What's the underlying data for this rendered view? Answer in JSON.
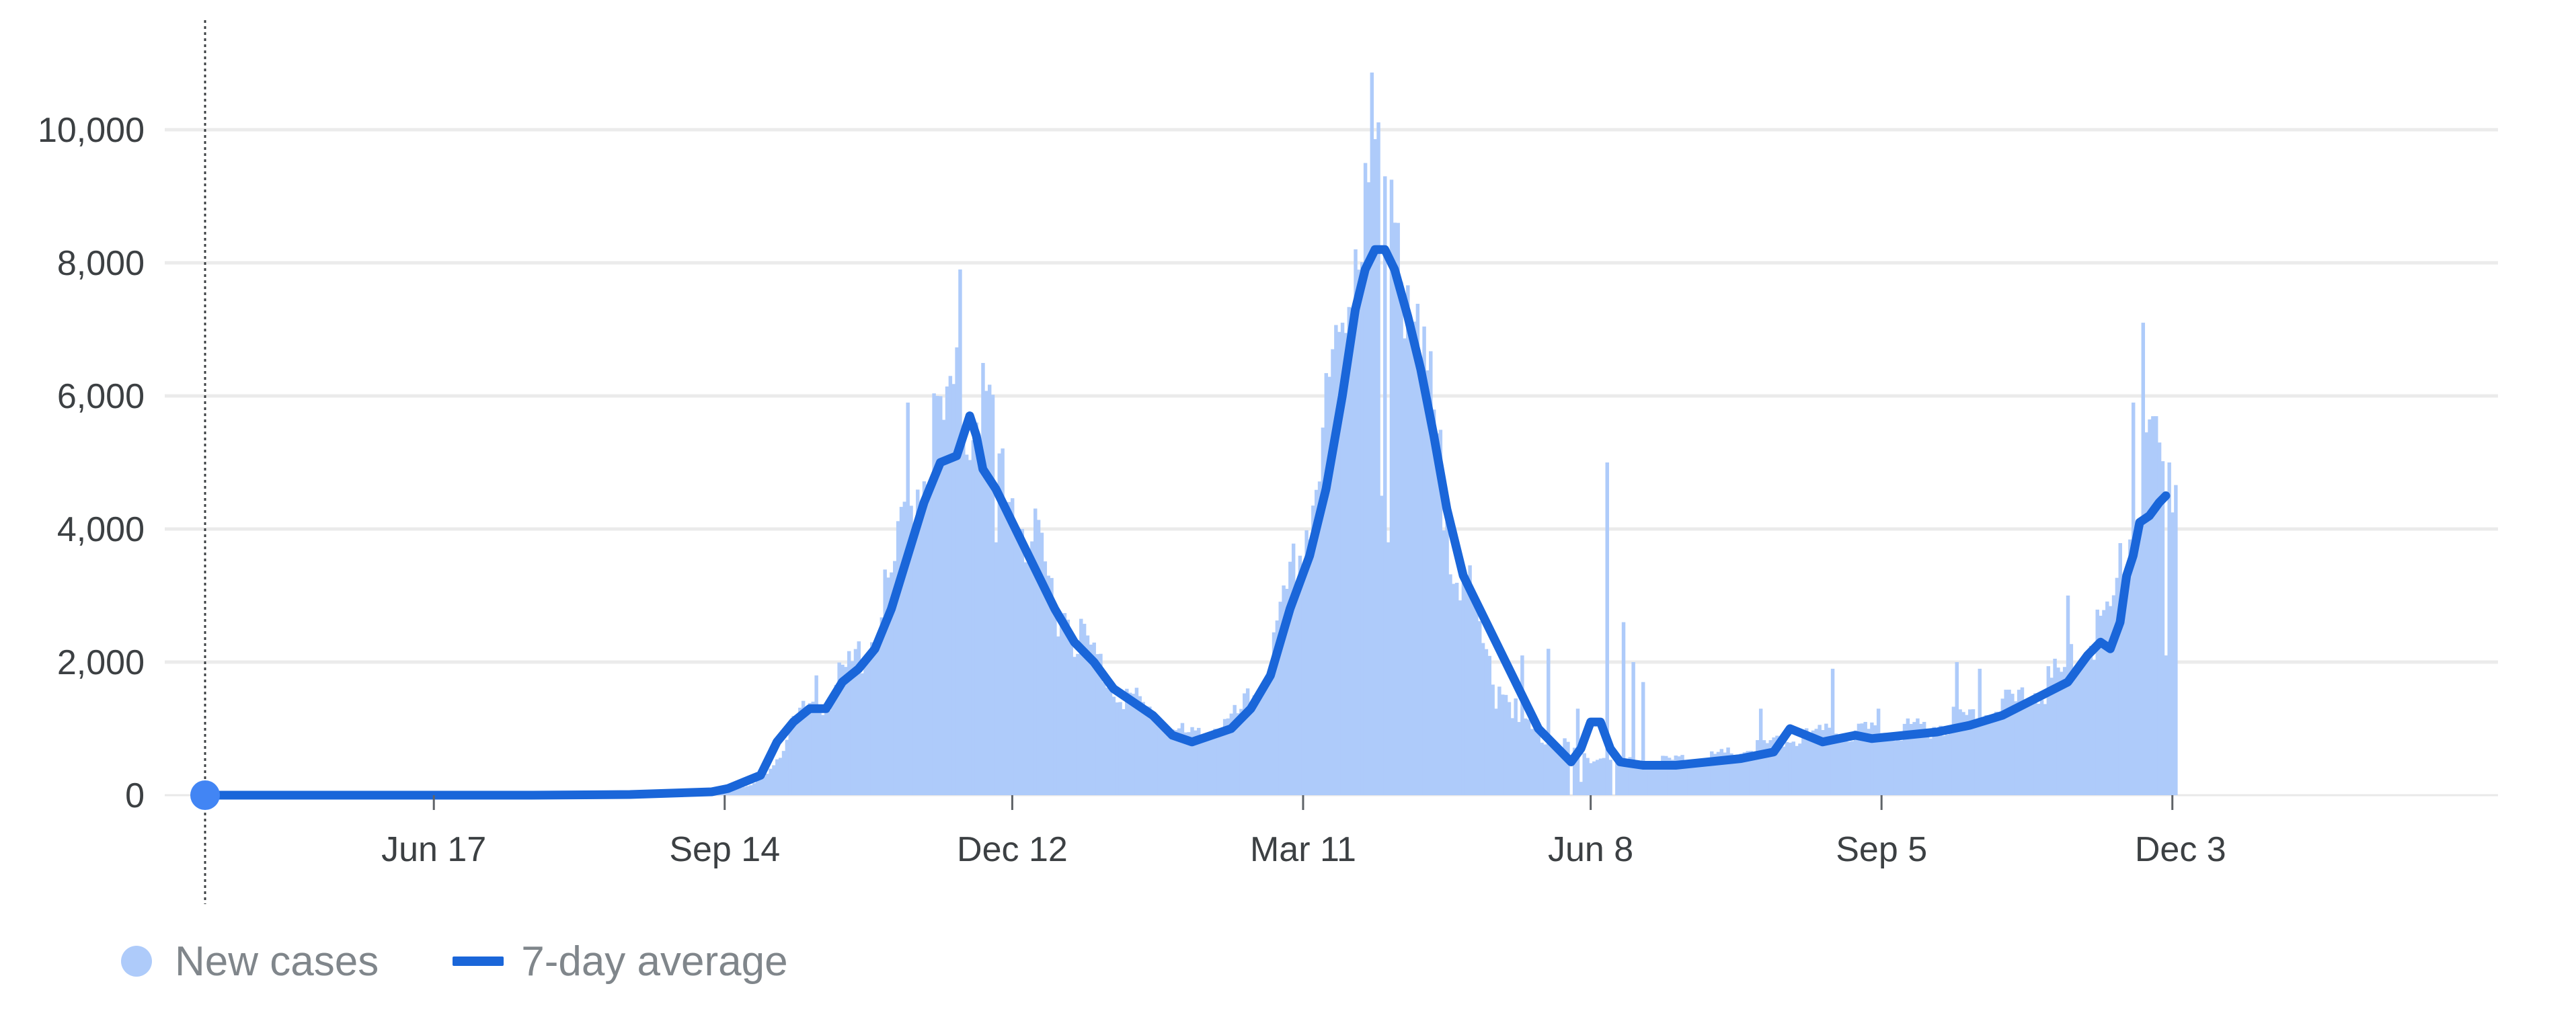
{
  "chart_data": {
    "type": "bar",
    "ylim": [
      0,
      11000
    ],
    "y_ticks": [
      0,
      2000,
      4000,
      6000,
      8000,
      10000
    ],
    "y_tick_labels": [
      "0",
      "2,000",
      "4,000",
      "6,000",
      "8,000",
      "10,000"
    ],
    "x_ticks": [
      70,
      159,
      247,
      336,
      424,
      513,
      602
    ],
    "x_tick_labels": [
      "Jun 17",
      "Sep 14",
      "Dec 12",
      "Mar 11",
      "Jun 8",
      "Sep 5",
      "Dec 3"
    ],
    "x_unit": "days",
    "xlim": [
      -16,
      603
    ],
    "grid": true,
    "legend": [
      {
        "label": "New cases",
        "color": "#aecbfa",
        "marker": "dot"
      },
      {
        "label": "7-day average",
        "color": "#1a66d9",
        "marker": "line"
      }
    ],
    "series": [
      {
        "name": "New cases",
        "type": "bar",
        "color": "#aecbfa",
        "points": [
          [
            0,
            0
          ],
          [
            50,
            0
          ],
          [
            100,
            0
          ],
          [
            150,
            0
          ],
          [
            160,
            60
          ],
          [
            167,
            150
          ],
          [
            172,
            300
          ],
          [
            176,
            600
          ],
          [
            181,
            1000
          ],
          [
            186,
            1300
          ],
          [
            190,
            1300
          ],
          [
            195,
            1600
          ],
          [
            200,
            1900
          ],
          [
            205,
            2200
          ],
          [
            210,
            2900
          ],
          [
            215,
            3800
          ],
          [
            220,
            4600
          ],
          [
            225,
            5000
          ],
          [
            230,
            5300
          ],
          [
            234,
            5200
          ],
          [
            238,
            5300
          ],
          [
            242,
            4700
          ],
          [
            246,
            4200
          ],
          [
            250,
            3800
          ],
          [
            255,
            3200
          ],
          [
            260,
            2700
          ],
          [
            266,
            2300
          ],
          [
            272,
            1900
          ],
          [
            278,
            1500
          ],
          [
            284,
            1300
          ],
          [
            290,
            1100
          ],
          [
            296,
            900
          ],
          [
            302,
            800
          ],
          [
            308,
            900
          ],
          [
            314,
            1000
          ],
          [
            320,
            1300
          ],
          [
            326,
            1800
          ],
          [
            332,
            2800
          ],
          [
            338,
            3800
          ],
          [
            343,
            5000
          ],
          [
            348,
            6400
          ],
          [
            353,
            8100
          ],
          [
            357,
            8700
          ],
          [
            361,
            8500
          ],
          [
            365,
            8000
          ],
          [
            369,
            6800
          ],
          [
            374,
            5500
          ],
          [
            379,
            4000
          ],
          [
            385,
            3000
          ],
          [
            391,
            2000
          ],
          [
            397,
            1500
          ],
          [
            403,
            1000
          ],
          [
            409,
            800
          ],
          [
            415,
            700
          ],
          [
            420,
            550
          ],
          [
            430,
            500
          ],
          [
            440,
            450
          ],
          [
            450,
            480
          ],
          [
            460,
            500
          ],
          [
            470,
            600
          ],
          [
            480,
            700
          ],
          [
            490,
            800
          ],
          [
            500,
            850
          ],
          [
            510,
            850
          ],
          [
            520,
            900
          ],
          [
            530,
            950
          ],
          [
            540,
            1100
          ],
          [
            550,
            1200
          ],
          [
            560,
            1400
          ],
          [
            570,
            1700
          ],
          [
            576,
            2100
          ],
          [
            580,
            2300
          ],
          [
            584,
            2600
          ],
          [
            588,
            3300
          ],
          [
            592,
            4100
          ],
          [
            596,
            4500
          ],
          [
            600,
            4300
          ]
        ],
        "spikes": [
          [
            187,
            1800
          ],
          [
            215,
            5900
          ],
          [
            224,
            6000
          ],
          [
            228,
            6300
          ],
          [
            231,
            7900
          ],
          [
            236,
            5600
          ],
          [
            242,
            3800
          ],
          [
            251,
            3500
          ],
          [
            348,
            7100
          ],
          [
            355,
            9500
          ],
          [
            361,
            9300
          ],
          [
            365,
            8600
          ],
          [
            372,
            6400
          ],
          [
            386,
            3300
          ],
          [
            403,
            2100
          ],
          [
            411,
            2200
          ],
          [
            420,
            1300
          ],
          [
            429,
            5000
          ],
          [
            434,
            2600
          ],
          [
            437,
            2000
          ],
          [
            440,
            1700
          ],
          [
            476,
            1300
          ],
          [
            498,
            1900
          ],
          [
            512,
            1300
          ],
          [
            536,
            2000
          ],
          [
            543,
            1900
          ],
          [
            570,
            3000
          ],
          [
            590,
            5900
          ],
          [
            593,
            7100
          ],
          [
            598,
            5300
          ],
          [
            601,
            5000
          ]
        ],
        "dips": [
          [
            152,
            0
          ],
          [
            360,
            4500
          ],
          [
            362,
            3800
          ],
          [
            395,
            1300
          ],
          [
            402,
            1100
          ],
          [
            418,
            0
          ],
          [
            421,
            200
          ],
          [
            431,
            0
          ],
          [
            600,
            2100
          ]
        ]
      },
      {
        "name": "7-day average",
        "type": "line",
        "color": "#1a66d9",
        "points": [
          [
            0,
            0
          ],
          [
            50,
            0
          ],
          [
            70,
            0
          ],
          [
            100,
            0
          ],
          [
            130,
            10
          ],
          [
            155,
            50
          ],
          [
            160,
            100
          ],
          [
            165,
            200
          ],
          [
            170,
            300
          ],
          [
            175,
            800
          ],
          [
            180,
            1100
          ],
          [
            185,
            1300
          ],
          [
            190,
            1300
          ],
          [
            195,
            1700
          ],
          [
            200,
            1900
          ],
          [
            205,
            2200
          ],
          [
            210,
            2800
          ],
          [
            215,
            3600
          ],
          [
            220,
            4400
          ],
          [
            225,
            5000
          ],
          [
            230,
            5100
          ],
          [
            234,
            5700
          ],
          [
            236,
            5400
          ],
          [
            238,
            4900
          ],
          [
            242,
            4600
          ],
          [
            246,
            4200
          ],
          [
            250,
            3800
          ],
          [
            255,
            3300
          ],
          [
            260,
            2800
          ],
          [
            266,
            2300
          ],
          [
            272,
            2000
          ],
          [
            278,
            1600
          ],
          [
            284,
            1400
          ],
          [
            290,
            1200
          ],
          [
            296,
            900
          ],
          [
            302,
            800
          ],
          [
            308,
            900
          ],
          [
            314,
            1000
          ],
          [
            320,
            1300
          ],
          [
            326,
            1800
          ],
          [
            332,
            2800
          ],
          [
            338,
            3600
          ],
          [
            343,
            4600
          ],
          [
            348,
            6000
          ],
          [
            352,
            7300
          ],
          [
            355,
            7900
          ],
          [
            358,
            8200
          ],
          [
            361,
            8200
          ],
          [
            364,
            7900
          ],
          [
            368,
            7200
          ],
          [
            372,
            6400
          ],
          [
            376,
            5400
          ],
          [
            380,
            4300
          ],
          [
            385,
            3300
          ],
          [
            390,
            2800
          ],
          [
            396,
            2200
          ],
          [
            402,
            1600
          ],
          [
            408,
            1000
          ],
          [
            414,
            700
          ],
          [
            418,
            500
          ],
          [
            421,
            700
          ],
          [
            424,
            1100
          ],
          [
            427,
            1100
          ],
          [
            430,
            700
          ],
          [
            433,
            500
          ],
          [
            440,
            450
          ],
          [
            450,
            450
          ],
          [
            460,
            500
          ],
          [
            470,
            550
          ],
          [
            480,
            650
          ],
          [
            485,
            1000
          ],
          [
            490,
            900
          ],
          [
            495,
            800
          ],
          [
            500,
            850
          ],
          [
            505,
            900
          ],
          [
            510,
            850
          ],
          [
            520,
            900
          ],
          [
            530,
            950
          ],
          [
            540,
            1050
          ],
          [
            550,
            1200
          ],
          [
            560,
            1450
          ],
          [
            570,
            1700
          ],
          [
            576,
            2100
          ],
          [
            580,
            2300
          ],
          [
            583,
            2200
          ],
          [
            586,
            2600
          ],
          [
            588,
            3300
          ],
          [
            590,
            3600
          ],
          [
            592,
            4100
          ],
          [
            595,
            4200
          ],
          [
            598,
            4400
          ],
          [
            600,
            4500
          ]
        ]
      }
    ]
  }
}
